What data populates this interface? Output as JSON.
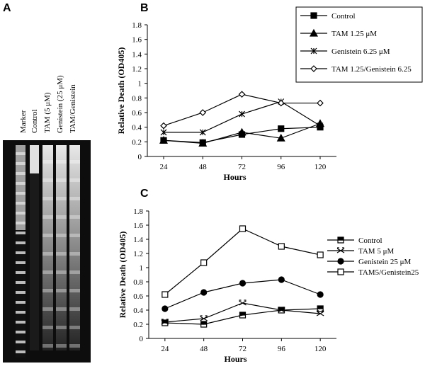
{
  "panel_a": {
    "label": "A",
    "lanes": [
      "Marker",
      "Control",
      "TAM (5 μM)",
      "Genistein (25 μM)",
      "TAM/Genistein"
    ]
  },
  "chart_data": [
    {
      "type": "line",
      "panel": "B",
      "xlabel": "Hours",
      "ylabel": "Relative Death (OD405)",
      "x": [
        24,
        48,
        72,
        96,
        120
      ],
      "xlim": [
        14,
        130
      ],
      "xticks": [
        24,
        48,
        72,
        96,
        120
      ],
      "ylim": [
        0,
        1.8
      ],
      "yticks": [
        0,
        0.2,
        0.4,
        0.6,
        0.8,
        1,
        1.2,
        1.4,
        1.6,
        1.8
      ],
      "legend": "top-right",
      "legend_box": true,
      "series": [
        {
          "name": "Control",
          "color": "#000000",
          "marker": "square",
          "values": [
            0.22,
            0.19,
            0.3,
            0.38,
            0.4
          ]
        },
        {
          "name": "TAM 1.25 μM",
          "color": "#000000",
          "marker": "triangle",
          "values": [
            0.22,
            0.18,
            0.33,
            0.25,
            0.45
          ]
        },
        {
          "name": "Genistein 6.25 μM",
          "color": "#000000",
          "marker": "asterisk",
          "values": [
            0.33,
            0.33,
            0.58,
            0.75,
            0.42
          ]
        },
        {
          "name": "TAM 1.25/Genistein 6.25",
          "color": "#000000",
          "marker": "diamond-open",
          "values": [
            0.42,
            0.6,
            0.85,
            0.73,
            0.73
          ]
        }
      ]
    },
    {
      "type": "line",
      "panel": "C",
      "xlabel": "Hours",
      "ylabel": "Relative Death (OD405)",
      "x": [
        24,
        48,
        72,
        96,
        120
      ],
      "xlim": [
        14,
        130
      ],
      "xticks": [
        24,
        48,
        72,
        96,
        120
      ],
      "ylim": [
        0,
        1.8
      ],
      "yticks": [
        0,
        0.2,
        0.4,
        0.6,
        0.8,
        1,
        1.2,
        1.4,
        1.6,
        1.8
      ],
      "legend": "right",
      "legend_box": false,
      "series": [
        {
          "name": "Control",
          "color": "#000000",
          "marker": "square-half",
          "values": [
            0.22,
            0.2,
            0.33,
            0.4,
            0.42
          ]
        },
        {
          "name": "TAM 5 μM",
          "color": "#000000",
          "marker": "x",
          "values": [
            0.23,
            0.28,
            0.5,
            0.4,
            0.35
          ]
        },
        {
          "name": "Genistein 25 μM",
          "color": "#000000",
          "marker": "circle",
          "values": [
            0.42,
            0.65,
            0.78,
            0.83,
            0.62
          ]
        },
        {
          "name": "TAM5/Genistein25",
          "color": "#000000",
          "marker": "square-open",
          "values": [
            0.62,
            1.07,
            1.55,
            1.3,
            1.18
          ]
        }
      ]
    }
  ]
}
